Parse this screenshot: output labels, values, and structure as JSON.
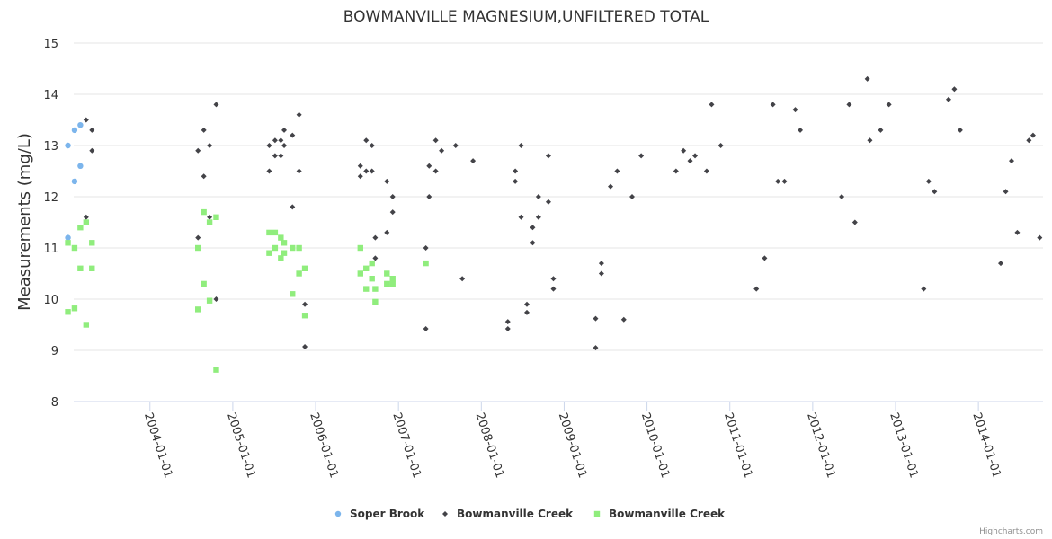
{
  "chart_data": {
    "type": "scatter",
    "title": "BOWMANVILLE MAGNESIUM,UNFILTERED TOTAL",
    "ylabel": "Measurements (mg/L)",
    "xlabel": "",
    "ylim": [
      8,
      15
    ],
    "yticks": [
      "8",
      "9",
      "10",
      "11",
      "12",
      "13",
      "14",
      "15"
    ],
    "xlim": [
      2003.08,
      2014.78
    ],
    "xticks": [
      {
        "label": "2004-01-01",
        "value": 2004.0
      },
      {
        "label": "2005-01-01",
        "value": 2005.0
      },
      {
        "label": "2006-01-01",
        "value": 2006.0
      },
      {
        "label": "2007-01-01",
        "value": 2007.0
      },
      {
        "label": "2008-01-01",
        "value": 2008.0
      },
      {
        "label": "2009-01-01",
        "value": 2009.0
      },
      {
        "label": "2010-01-01",
        "value": 2010.0
      },
      {
        "label": "2011-01-01",
        "value": 2011.0
      },
      {
        "label": "2012-01-01",
        "value": 2012.0
      },
      {
        "label": "2013-01-01",
        "value": 2013.0
      },
      {
        "label": "2014-01-01",
        "value": 2014.0
      }
    ],
    "grid": true,
    "legend_position": "bottom-center",
    "series": [
      {
        "name": "Soper Brook",
        "marker": "circle",
        "color": "#7cb5ec",
        "points": [
          [
            3.01,
            11.2
          ],
          [
            3.01,
            13.0
          ],
          [
            3.09,
            13.3
          ],
          [
            3.09,
            12.3
          ],
          [
            3.16,
            12.6
          ],
          [
            3.16,
            13.4
          ]
        ]
      },
      {
        "name": "Bowmanville Creek",
        "marker": "diamond",
        "color": "#434348",
        "points": [
          [
            3.23,
            13.5
          ],
          [
            3.23,
            11.6
          ],
          [
            3.3,
            13.3
          ],
          [
            3.3,
            12.9
          ],
          [
            4.58,
            12.9
          ],
          [
            4.58,
            11.2
          ],
          [
            4.65,
            13.3
          ],
          [
            4.65,
            12.4
          ],
          [
            4.72,
            13.0
          ],
          [
            4.72,
            11.6
          ],
          [
            4.8,
            13.8
          ],
          [
            4.8,
            10.0
          ],
          [
            5.44,
            13.0
          ],
          [
            5.44,
            12.5
          ],
          [
            5.51,
            13.1
          ],
          [
            5.51,
            12.8
          ],
          [
            5.58,
            13.1
          ],
          [
            5.58,
            12.8
          ],
          [
            5.62,
            13.3
          ],
          [
            5.62,
            13.0
          ],
          [
            5.72,
            13.2
          ],
          [
            5.72,
            11.8
          ],
          [
            5.8,
            13.6
          ],
          [
            5.8,
            12.5
          ],
          [
            5.87,
            9.9
          ],
          [
            5.87,
            9.07
          ],
          [
            6.54,
            12.6
          ],
          [
            6.54,
            12.4
          ],
          [
            6.61,
            13.1
          ],
          [
            6.61,
            12.5
          ],
          [
            6.68,
            13.0
          ],
          [
            6.68,
            12.5
          ],
          [
            6.72,
            11.2
          ],
          [
            6.72,
            10.8
          ],
          [
            6.86,
            12.3
          ],
          [
            6.86,
            11.3
          ],
          [
            6.93,
            12.0
          ],
          [
            6.93,
            11.7
          ],
          [
            7.33,
            11.0
          ],
          [
            7.33,
            9.42
          ],
          [
            7.37,
            12.6
          ],
          [
            7.37,
            12.0
          ],
          [
            7.45,
            13.1
          ],
          [
            7.45,
            12.5
          ],
          [
            7.52,
            12.9
          ],
          [
            7.69,
            13.0
          ],
          [
            7.77,
            10.4
          ],
          [
            7.9,
            12.7
          ],
          [
            8.32,
            9.56
          ],
          [
            8.32,
            9.42
          ],
          [
            8.41,
            12.5
          ],
          [
            8.41,
            12.3
          ],
          [
            8.48,
            13.0
          ],
          [
            8.48,
            11.6
          ],
          [
            8.55,
            9.9
          ],
          [
            8.55,
            9.74
          ],
          [
            8.62,
            11.4
          ],
          [
            8.62,
            11.1
          ],
          [
            8.69,
            12.0
          ],
          [
            8.69,
            11.6
          ],
          [
            8.81,
            12.8
          ],
          [
            8.81,
            11.9
          ],
          [
            8.87,
            10.4
          ],
          [
            8.87,
            10.2
          ],
          [
            9.38,
            9.62
          ],
          [
            9.38,
            9.05
          ],
          [
            9.45,
            10.7
          ],
          [
            9.45,
            10.5
          ],
          [
            9.56,
            12.2
          ],
          [
            9.64,
            12.5
          ],
          [
            9.72,
            9.6
          ],
          [
            9.82,
            12.0
          ],
          [
            9.93,
            12.8
          ],
          [
            10.35,
            12.5
          ],
          [
            10.44,
            12.9
          ],
          [
            10.52,
            12.7
          ],
          [
            10.58,
            12.8
          ],
          [
            10.72,
            12.5
          ],
          [
            10.78,
            13.8
          ],
          [
            10.89,
            13.0
          ],
          [
            11.32,
            10.2
          ],
          [
            11.42,
            10.8
          ],
          [
            11.52,
            13.8
          ],
          [
            11.58,
            12.3
          ],
          [
            11.66,
            12.3
          ],
          [
            11.79,
            13.7
          ],
          [
            11.85,
            13.3
          ],
          [
            12.35,
            12.0
          ],
          [
            12.44,
            13.8
          ],
          [
            12.51,
            11.5
          ],
          [
            12.66,
            14.3
          ],
          [
            12.69,
            13.1
          ],
          [
            12.82,
            13.3
          ],
          [
            12.92,
            13.8
          ],
          [
            13.34,
            10.2
          ],
          [
            13.4,
            12.3
          ],
          [
            13.47,
            12.1
          ],
          [
            13.64,
            13.9
          ],
          [
            13.71,
            14.1
          ],
          [
            13.78,
            13.3
          ],
          [
            14.27,
            10.7
          ],
          [
            14.33,
            12.1
          ],
          [
            14.4,
            12.7
          ],
          [
            14.47,
            11.3
          ],
          [
            14.61,
            13.1
          ],
          [
            14.66,
            13.2
          ],
          [
            14.74,
            11.2
          ]
        ]
      },
      {
        "name": "Bowmanville Creek",
        "marker": "square",
        "color": "#90ed7d",
        "points": [
          [
            3.01,
            11.1
          ],
          [
            3.01,
            9.75
          ],
          [
            3.09,
            11.0
          ],
          [
            3.09,
            9.82
          ],
          [
            3.16,
            11.4
          ],
          [
            3.16,
            10.6
          ],
          [
            3.23,
            11.5
          ],
          [
            3.23,
            9.5
          ],
          [
            3.3,
            11.1
          ],
          [
            3.3,
            10.6
          ],
          [
            4.58,
            11.0
          ],
          [
            4.58,
            9.8
          ],
          [
            4.65,
            11.7
          ],
          [
            4.65,
            10.3
          ],
          [
            4.72,
            11.5
          ],
          [
            4.72,
            9.97
          ],
          [
            4.8,
            11.6
          ],
          [
            4.8,
            8.62
          ],
          [
            5.44,
            11.3
          ],
          [
            5.44,
            10.9
          ],
          [
            5.51,
            11.3
          ],
          [
            5.51,
            11.0
          ],
          [
            5.58,
            11.2
          ],
          [
            5.58,
            10.8
          ],
          [
            5.62,
            11.1
          ],
          [
            5.62,
            10.9
          ],
          [
            5.72,
            11.0
          ],
          [
            5.72,
            10.1
          ],
          [
            5.8,
            11.0
          ],
          [
            5.8,
            10.5
          ],
          [
            5.87,
            10.6
          ],
          [
            5.87,
            9.68
          ],
          [
            6.54,
            11.0
          ],
          [
            6.54,
            10.5
          ],
          [
            6.61,
            10.6
          ],
          [
            6.61,
            10.2
          ],
          [
            6.68,
            10.7
          ],
          [
            6.68,
            10.4
          ],
          [
            6.72,
            10.2
          ],
          [
            6.72,
            9.95
          ],
          [
            6.86,
            10.5
          ],
          [
            6.86,
            10.3
          ],
          [
            6.93,
            10.4
          ],
          [
            6.93,
            10.3
          ],
          [
            7.33,
            10.7
          ]
        ]
      }
    ]
  },
  "credits": "Highcharts.com"
}
